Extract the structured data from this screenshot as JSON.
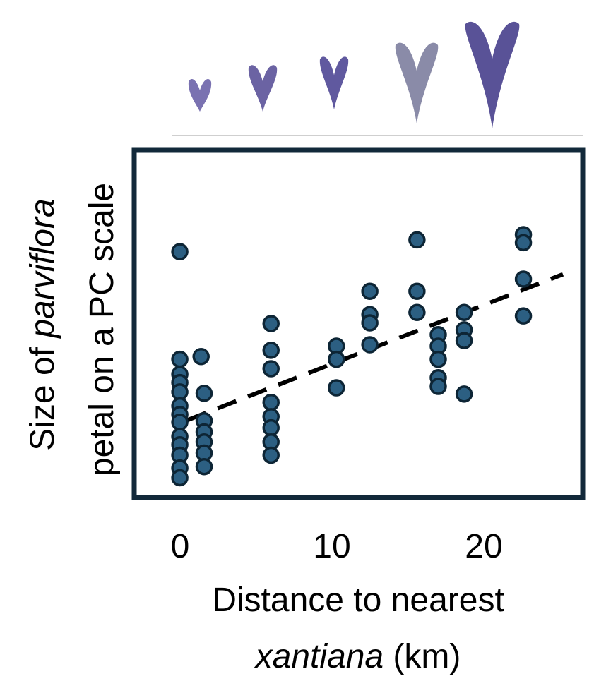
{
  "chart_data": {
    "type": "scatter",
    "title": "",
    "xlabel": {
      "line1": "Distance to nearest",
      "italic": "xantiana",
      "rest": " (km)"
    },
    "ylabel": {
      "line1_prefix": "Size of ",
      "line1_italic": "parviflora",
      "line2": "petal on a PC scale"
    },
    "xlim": [
      -3,
      26.5
    ],
    "ylim": [
      0,
      10
    ],
    "x_ticks": [
      0,
      10,
      20
    ],
    "x_tick_labels": [
      "0",
      "10",
      "20"
    ],
    "y_ticks": [],
    "grid": false,
    "legend": "none",
    "marker_color": "#2c5f82",
    "marker_edge_color": "#0d2535",
    "frame_color": "#12293a",
    "trendline": {
      "style": "dashed",
      "color": "#000000",
      "x": [
        0.5,
        25.2
      ],
      "y": [
        2.23,
        6.43
      ]
    },
    "points": [
      {
        "x": 0,
        "y": 7.08
      },
      {
        "x": 0,
        "y": 3.98
      },
      {
        "x": 0,
        "y": 3.55
      },
      {
        "x": 0,
        "y": 3.31
      },
      {
        "x": 0,
        "y": 3.04
      },
      {
        "x": 0,
        "y": 2.64
      },
      {
        "x": 0,
        "y": 2.39
      },
      {
        "x": 0,
        "y": 2.17
      },
      {
        "x": 0,
        "y": 1.76
      },
      {
        "x": 0,
        "y": 1.52
      },
      {
        "x": 0,
        "y": 1.22
      },
      {
        "x": 0,
        "y": 0.85
      },
      {
        "x": 0,
        "y": 0.57
      },
      {
        "x": 1.4,
        "y": 4.06
      },
      {
        "x": 1.6,
        "y": 3.0
      },
      {
        "x": 1.6,
        "y": 2.21
      },
      {
        "x": 1.6,
        "y": 1.89
      },
      {
        "x": 1.6,
        "y": 1.6
      },
      {
        "x": 1.6,
        "y": 1.28
      },
      {
        "x": 1.6,
        "y": 0.89
      },
      {
        "x": 6.0,
        "y": 5.01
      },
      {
        "x": 6.0,
        "y": 4.24
      },
      {
        "x": 6.0,
        "y": 3.71
      },
      {
        "x": 6.0,
        "y": 2.74
      },
      {
        "x": 6.0,
        "y": 2.33
      },
      {
        "x": 6.0,
        "y": 2.01
      },
      {
        "x": 6.0,
        "y": 1.6
      },
      {
        "x": 6.0,
        "y": 1.22
      },
      {
        "x": 10.3,
        "y": 4.36
      },
      {
        "x": 10.3,
        "y": 3.98
      },
      {
        "x": 10.3,
        "y": 3.16
      },
      {
        "x": 12.5,
        "y": 5.94
      },
      {
        "x": 12.5,
        "y": 5.27
      },
      {
        "x": 12.5,
        "y": 5.03
      },
      {
        "x": 12.5,
        "y": 4.4
      },
      {
        "x": 15.6,
        "y": 7.42
      },
      {
        "x": 15.6,
        "y": 5.94
      },
      {
        "x": 15.6,
        "y": 5.33
      },
      {
        "x": 17.0,
        "y": 4.69
      },
      {
        "x": 17.0,
        "y": 4.36
      },
      {
        "x": 17.0,
        "y": 3.98
      },
      {
        "x": 17.0,
        "y": 3.45
      },
      {
        "x": 17.0,
        "y": 3.2
      },
      {
        "x": 18.7,
        "y": 5.33
      },
      {
        "x": 18.7,
        "y": 4.83
      },
      {
        "x": 18.7,
        "y": 4.52
      },
      {
        "x": 18.7,
        "y": 2.98
      },
      {
        "x": 22.6,
        "y": 7.57
      },
      {
        "x": 22.6,
        "y": 7.34
      },
      {
        "x": 22.6,
        "y": 6.29
      },
      {
        "x": 22.6,
        "y": 5.23
      }
    ],
    "petal_images": {
      "count": 5,
      "colors": [
        "#6b63a8",
        "#5b5299",
        "#4f4795",
        "#7d7e9e",
        "#473f8c"
      ]
    }
  }
}
